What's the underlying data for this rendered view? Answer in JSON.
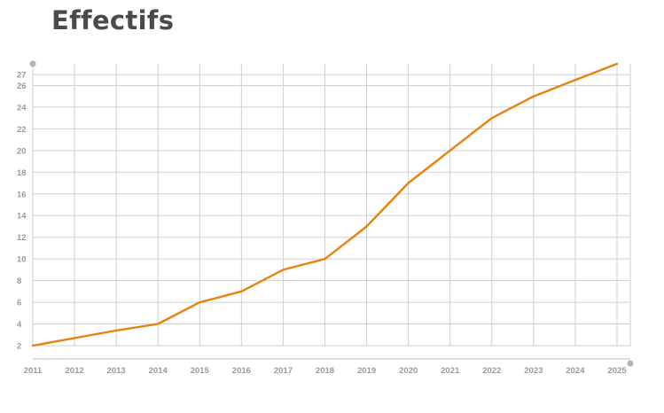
{
  "title": "Effectifs",
  "colors": {
    "line": "#e8820e",
    "grid": "#cfcfcf",
    "tick": "#9a9a9a",
    "title": "#4a4a4a"
  },
  "chart_data": {
    "type": "line",
    "title": "Effectifs",
    "xlabel": "",
    "ylabel": "",
    "grid": true,
    "x": [
      "2011",
      "2012",
      "2013",
      "2014",
      "2015",
      "2016",
      "2017",
      "2018",
      "2019",
      "2020",
      "2021",
      "2022",
      "2023",
      "2024",
      "2025"
    ],
    "y_ticks": [
      2,
      4,
      6,
      8,
      10,
      12,
      14,
      16,
      18,
      20,
      22,
      24,
      26,
      27
    ],
    "series": [
      {
        "values": [
          2,
          2.7,
          3.4,
          4,
          6,
          7,
          9,
          10,
          13,
          17,
          20,
          23,
          25,
          26.5,
          28
        ]
      }
    ]
  }
}
